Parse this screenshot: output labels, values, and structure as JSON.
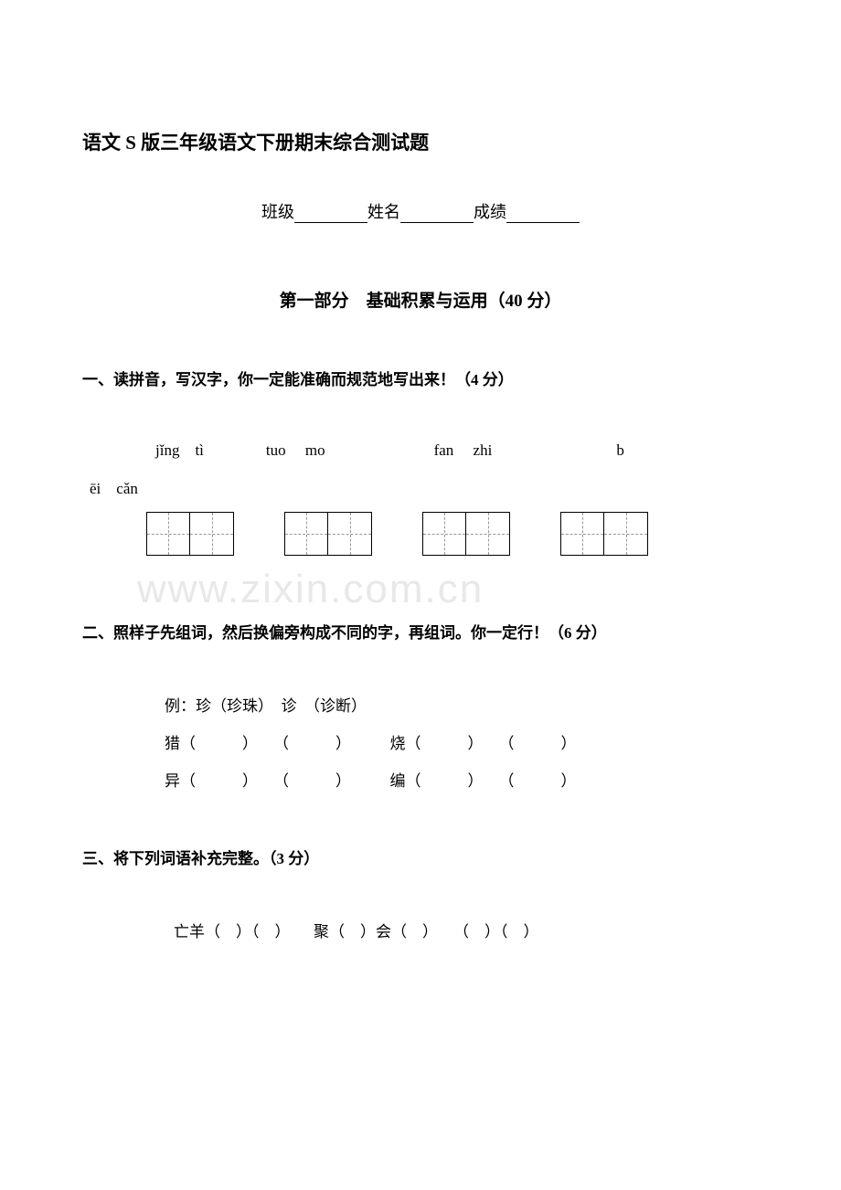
{
  "doc_title": "语文 S 版三年级语文下册期末综合测试题",
  "header": {
    "class_label": "班级",
    "name_label": "姓名",
    "score_label": "成绩"
  },
  "part1": {
    "title": "第一部分　基础积累与运用（40 分）"
  },
  "q1": {
    "heading": "一、读拼音，写汉字，你一定能准确而规范地写出来！（4 分）",
    "pinyin_row1": "jǐng　tì　　　　tuo　 mo　　　　　　　fan　 zhi　　　　　　　　b",
    "pinyin_row2": "ēi　cǎn"
  },
  "q2": {
    "heading": "二、照样子先组词，然后换偏旁构成不同的字，再组词。你一定行！（6 分）",
    "example": "例：珍（珍珠）　诊　（诊断）",
    "row1_left": "猎（　　　）　　（　　　）",
    "row1_right": "烧（　　　）　　（　　　）",
    "row2_left": "异（　　　）　　（　　　）",
    "row2_right": "编（　　　）　　（　　　）"
  },
  "q3": {
    "heading": "三、将下列词语补充完整。（3 分）",
    "line1": "亡羊（　）（　）　　聚（　）会（　）　　（　）（　）"
  },
  "watermark_text": "www.zixin.com.cn",
  "colors": {
    "text": "#000000",
    "background": "#ffffff",
    "watermark": "#e8e8e8",
    "dash": "#999999"
  }
}
